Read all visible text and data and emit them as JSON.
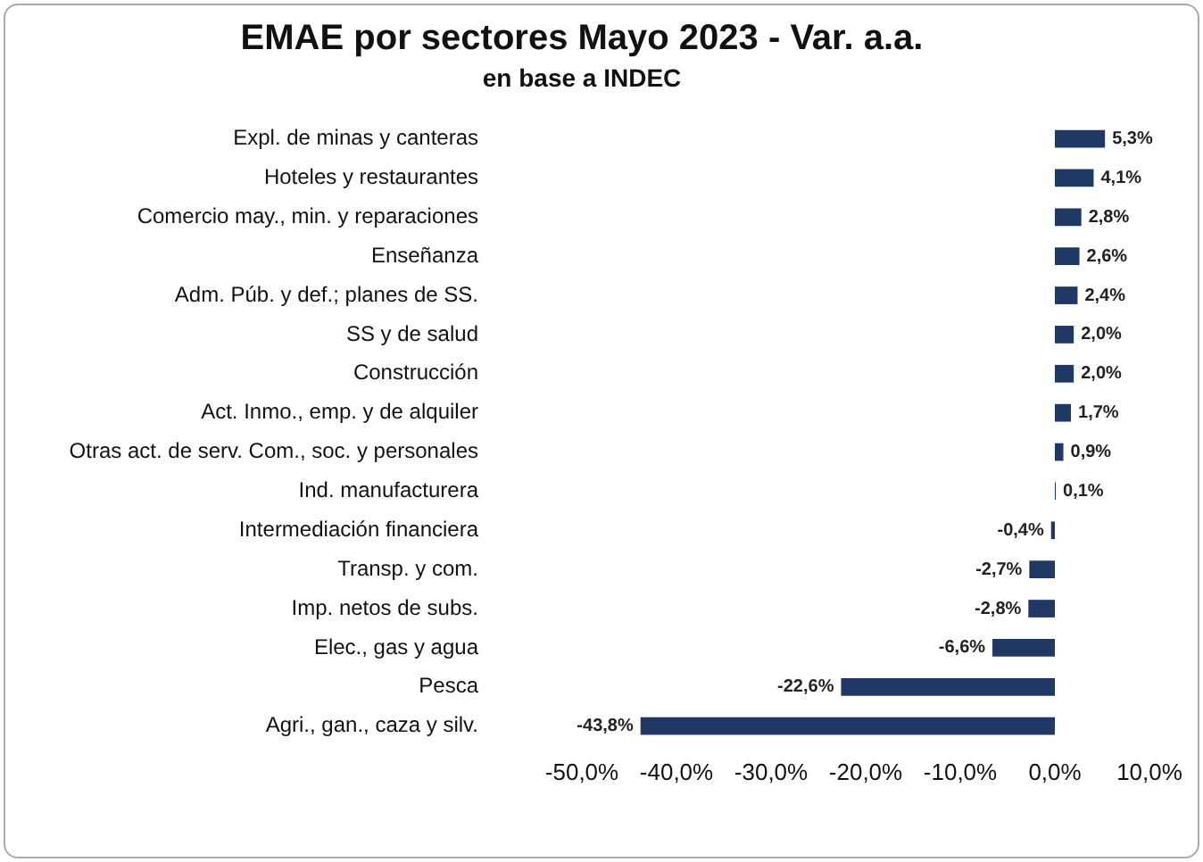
{
  "chart_data": {
    "type": "bar",
    "orientation": "horizontal",
    "title": "EMAE por sectores Mayo 2023 - Var. a.a.",
    "subtitle": "en base a INDEC",
    "categories": [
      "Expl. de minas y canteras",
      "Hoteles y restaurantes",
      "Comercio may., min. y reparaciones",
      "Enseñanza",
      "Adm. Púb. y def.; planes de SS.",
      "SS y de salud",
      "Construcción",
      "Act. Inmo., emp. y de alquiler",
      "Otras act. de serv. Com., soc. y personales",
      "Ind. manufacturera",
      "Intermediación financiera",
      "Transp. y com.",
      "Imp. netos de subs.",
      "Elec., gas y agua",
      "Pesca",
      "Agri., gan., caza y silv."
    ],
    "values": [
      5.3,
      4.1,
      2.8,
      2.6,
      2.4,
      2.0,
      2.0,
      1.7,
      0.9,
      0.1,
      -0.4,
      -2.7,
      -2.8,
      -6.6,
      -22.6,
      -43.8
    ],
    "value_labels": [
      "5,3%",
      "4,1%",
      "2,8%",
      "2,6%",
      "2,4%",
      "2,0%",
      "2,0%",
      "1,7%",
      "0,9%",
      "0,1%",
      "-0,4%",
      "-2,7%",
      "-2,8%",
      "-6,6%",
      "-22,6%",
      "-43,8%"
    ],
    "color": "#1f3864",
    "xlim": [
      -50,
      10
    ],
    "xticks": [
      {
        "value": -50,
        "label": "-50,0%"
      },
      {
        "value": -40,
        "label": "-40,0%"
      },
      {
        "value": -30,
        "label": "-30,0%"
      },
      {
        "value": -20,
        "label": "-20,0%"
      },
      {
        "value": -10,
        "label": "-10,0%"
      },
      {
        "value": 0,
        "label": "0,0%"
      },
      {
        "value": 10,
        "label": "10,0%"
      }
    ],
    "grid": false,
    "legend": false
  }
}
